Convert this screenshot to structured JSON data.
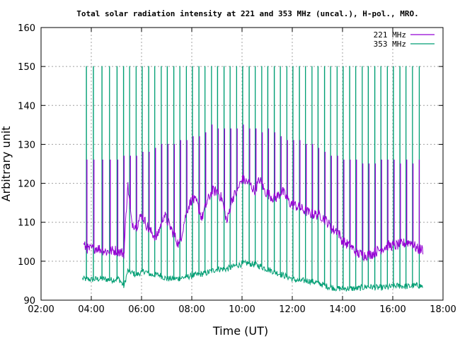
{
  "chart_data": {
    "type": "line",
    "title": "Total solar radiation intensity at 221 and 353 MHz (uncal.), H-pol., MRO.",
    "xlabel": "Time (UT)",
    "ylabel": "Arbitrary unit",
    "xlim": [
      2,
      18
    ],
    "ylim": [
      90,
      160
    ],
    "xticks": [
      "02:00",
      "04:00",
      "06:00",
      "08:00",
      "10:00",
      "12:00",
      "14:00",
      "16:00",
      "18:00"
    ],
    "yticks": [
      "90",
      "100",
      "110",
      "120",
      "130",
      "140",
      "150",
      "160"
    ],
    "grid": true,
    "legend_position": "top-right",
    "x_unit": "hours UT",
    "series": [
      {
        "name": "221 MHz",
        "color": "#9400d3",
        "baseline": [
          [
            3.7,
            104
          ],
          [
            3.9,
            103
          ],
          [
            4.2,
            103.5
          ],
          [
            4.6,
            102.5
          ],
          [
            5.0,
            102.8
          ],
          [
            5.3,
            102
          ],
          [
            5.45,
            120
          ],
          [
            5.6,
            110
          ],
          [
            5.8,
            109
          ],
          [
            6.0,
            112
          ],
          [
            6.3,
            108
          ],
          [
            6.6,
            106
          ],
          [
            6.9,
            112
          ],
          [
            7.2,
            108
          ],
          [
            7.5,
            104
          ],
          [
            7.8,
            113
          ],
          [
            8.0,
            116
          ],
          [
            8.2,
            115
          ],
          [
            8.4,
            111
          ],
          [
            8.6,
            115
          ],
          [
            8.8,
            118
          ],
          [
            9.0,
            118
          ],
          [
            9.2,
            116
          ],
          [
            9.4,
            110
          ],
          [
            9.6,
            116
          ],
          [
            9.8,
            118
          ],
          [
            10.0,
            121
          ],
          [
            10.3,
            120
          ],
          [
            10.5,
            118
          ],
          [
            10.7,
            121
          ],
          [
            10.9,
            118
          ],
          [
            11.1,
            117
          ],
          [
            11.3,
            116
          ],
          [
            11.6,
            118
          ],
          [
            11.9,
            115
          ],
          [
            12.2,
            114
          ],
          [
            12.5,
            113
          ],
          [
            12.8,
            112
          ],
          [
            13.1,
            112
          ],
          [
            13.4,
            110
          ],
          [
            13.6,
            108
          ],
          [
            13.8,
            108
          ],
          [
            14.0,
            105
          ],
          [
            14.3,
            104
          ],
          [
            14.6,
            102
          ],
          [
            14.9,
            101.5
          ],
          [
            15.2,
            102
          ],
          [
            15.5,
            103
          ],
          [
            15.8,
            104
          ],
          [
            16.1,
            104
          ],
          [
            16.4,
            104.5
          ],
          [
            16.7,
            105
          ],
          [
            17.0,
            103
          ],
          [
            17.2,
            103
          ]
        ],
        "spike_tops": [
          [
            3.82,
            126
          ],
          [
            4.1,
            126
          ],
          [
            4.45,
            126
          ],
          [
            4.75,
            126
          ],
          [
            5.05,
            126
          ],
          [
            5.3,
            127
          ],
          [
            5.55,
            127
          ],
          [
            5.8,
            127
          ],
          [
            6.05,
            128
          ],
          [
            6.3,
            128
          ],
          [
            6.55,
            129
          ],
          [
            6.8,
            130
          ],
          [
            7.05,
            130
          ],
          [
            7.3,
            130
          ],
          [
            7.55,
            131
          ],
          [
            7.8,
            131
          ],
          [
            8.05,
            132
          ],
          [
            8.3,
            132
          ],
          [
            8.55,
            133
          ],
          [
            8.8,
            135
          ],
          [
            9.05,
            134
          ],
          [
            9.3,
            134
          ],
          [
            9.55,
            134
          ],
          [
            9.8,
            134
          ],
          [
            10.05,
            135
          ],
          [
            10.3,
            134
          ],
          [
            10.55,
            134
          ],
          [
            10.8,
            133
          ],
          [
            11.05,
            134
          ],
          [
            11.3,
            133
          ],
          [
            11.55,
            132
          ],
          [
            11.8,
            131
          ],
          [
            12.05,
            131
          ],
          [
            12.3,
            131
          ],
          [
            12.55,
            130
          ],
          [
            12.8,
            130
          ],
          [
            13.05,
            129
          ],
          [
            13.3,
            128
          ],
          [
            13.55,
            127
          ],
          [
            13.8,
            127
          ],
          [
            14.05,
            126
          ],
          [
            14.3,
            126
          ],
          [
            14.55,
            126
          ],
          [
            14.8,
            125
          ],
          [
            15.05,
            125
          ],
          [
            15.3,
            125
          ],
          [
            15.55,
            126
          ],
          [
            15.8,
            126
          ],
          [
            16.05,
            126
          ],
          [
            16.3,
            125
          ],
          [
            16.55,
            126
          ],
          [
            16.8,
            125
          ],
          [
            17.05,
            126
          ]
        ]
      },
      {
        "name": "353 MHz",
        "color": "#009e73",
        "baseline": [
          [
            3.65,
            95.5
          ],
          [
            4.0,
            95.3
          ],
          [
            4.4,
            95.5
          ],
          [
            4.8,
            95.2
          ],
          [
            5.1,
            95.5
          ],
          [
            5.3,
            93.5
          ],
          [
            5.45,
            97.5
          ],
          [
            5.8,
            96.5
          ],
          [
            6.1,
            97.5
          ],
          [
            6.4,
            96.5
          ],
          [
            6.7,
            96.5
          ],
          [
            7.0,
            95.5
          ],
          [
            7.4,
            95.5
          ],
          [
            7.8,
            96
          ],
          [
            8.2,
            96.5
          ],
          [
            8.6,
            97
          ],
          [
            9.0,
            98
          ],
          [
            9.4,
            98
          ],
          [
            9.8,
            99
          ],
          [
            10.2,
            99.5
          ],
          [
            10.6,
            99
          ],
          [
            11.0,
            98
          ],
          [
            11.4,
            97
          ],
          [
            11.8,
            96
          ],
          [
            12.2,
            95
          ],
          [
            12.6,
            95
          ],
          [
            13.0,
            94.5
          ],
          [
            13.4,
            93.5
          ],
          [
            13.8,
            93
          ],
          [
            14.2,
            93
          ],
          [
            14.6,
            93
          ],
          [
            15.0,
            93.5
          ],
          [
            15.4,
            93.2
          ],
          [
            15.8,
            93.3
          ],
          [
            16.2,
            93.7
          ],
          [
            16.6,
            93.5
          ],
          [
            17.0,
            93.8
          ],
          [
            17.2,
            93.5
          ]
        ],
        "spike_tops": [
          [
            3.8,
            150
          ],
          [
            4.08,
            150
          ],
          [
            4.42,
            150
          ],
          [
            4.72,
            150
          ],
          [
            5.02,
            150
          ],
          [
            5.28,
            150
          ],
          [
            5.52,
            150
          ],
          [
            5.78,
            150
          ],
          [
            6.02,
            150
          ],
          [
            6.28,
            150
          ],
          [
            6.52,
            150
          ],
          [
            6.78,
            150
          ],
          [
            7.02,
            150
          ],
          [
            7.28,
            150
          ],
          [
            7.52,
            150
          ],
          [
            7.78,
            150
          ],
          [
            8.02,
            150
          ],
          [
            8.28,
            150
          ],
          [
            8.52,
            150
          ],
          [
            8.78,
            150
          ],
          [
            9.02,
            150
          ],
          [
            9.28,
            150
          ],
          [
            9.52,
            150
          ],
          [
            9.78,
            150
          ],
          [
            10.02,
            150
          ],
          [
            10.28,
            150
          ],
          [
            10.52,
            150
          ],
          [
            10.78,
            150
          ],
          [
            11.02,
            150
          ],
          [
            11.28,
            150
          ],
          [
            11.52,
            150
          ],
          [
            11.78,
            150
          ],
          [
            12.02,
            150
          ],
          [
            12.28,
            150
          ],
          [
            12.52,
            150
          ],
          [
            12.78,
            150
          ],
          [
            13.02,
            150
          ],
          [
            13.28,
            150
          ],
          [
            13.52,
            150
          ],
          [
            13.78,
            150
          ],
          [
            14.02,
            150
          ],
          [
            14.28,
            150
          ],
          [
            14.52,
            150
          ],
          [
            14.78,
            150
          ],
          [
            15.02,
            150
          ],
          [
            15.28,
            150
          ],
          [
            15.52,
            150
          ],
          [
            15.78,
            150
          ],
          [
            16.02,
            150
          ],
          [
            16.28,
            150
          ],
          [
            16.52,
            150
          ],
          [
            16.78,
            150
          ],
          [
            17.05,
            150
          ]
        ]
      }
    ]
  }
}
